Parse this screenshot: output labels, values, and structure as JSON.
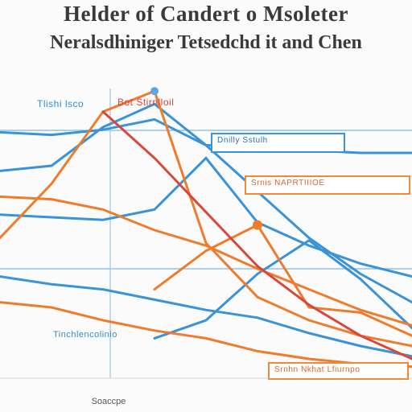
{
  "chart_data": {
    "type": "line",
    "title_line1": "Helder of Candert o Msoleter",
    "title_line2": "Neralsdhiniger Tetsedchd it and Chen",
    "xlabel": "Soaccpe",
    "x": [
      0,
      1,
      2,
      3,
      4,
      5,
      6,
      7,
      8
    ],
    "ylim": [
      0,
      10
    ],
    "grid": true,
    "series": [
      {
        "color": "#3a93d8",
        "values": [
          9.3,
          9.2,
          9.4,
          9.8,
          8.8,
          8.7,
          8.6,
          8.5,
          8.5
        ]
      },
      {
        "color": "#3a93d8",
        "values": [
          6.1,
          6.0,
          5.9,
          6.3,
          8.3,
          5.8,
          4.9,
          4.2,
          3.7
        ]
      },
      {
        "color": "#3a93d8",
        "values": [
          7.8,
          8.0,
          9.5,
          10.4,
          8.8,
          7.0,
          5.2,
          3.8,
          2.7
        ]
      },
      {
        "color": "#3a93d8",
        "values": [
          3.7,
          3.4,
          3.2,
          2.8,
          2.4,
          2.1,
          1.5,
          1.0,
          0.6
        ]
      },
      {
        "color": "#3a93d8",
        "values": [
          null,
          null,
          null,
          1.3,
          2.0,
          3.8,
          5.1,
          3.6,
          1.7
        ]
      },
      {
        "color": "#ef7b2c",
        "values": [
          6.8,
          6.7,
          6.3,
          5.5,
          4.9,
          4.0,
          3.2,
          2.4,
          1.8
        ]
      },
      {
        "color": "#ef7b2c",
        "values": [
          2.7,
          2.5,
          2.0,
          1.6,
          1.3,
          0.8,
          0.5,
          0.3,
          0.2
        ]
      },
      {
        "color": "#ef7b2c",
        "values": [
          5.2,
          7.3,
          10.1,
          10.9,
          5.0,
          2.9,
          2.0,
          1.4,
          1.0
        ]
      },
      {
        "color": "#ef7b2c",
        "values": [
          null,
          null,
          null,
          3.2,
          4.7,
          5.7,
          2.5,
          2.3,
          1.4
        ]
      },
      {
        "color": "#d9473a",
        "values": [
          null,
          null,
          10.1,
          8.3,
          6.2,
          4.1,
          2.6,
          1.4,
          0.5
        ]
      }
    ],
    "annotations": {
      "top_left": "Tlishi lsco",
      "top_red": "Bot Stirnlloil",
      "box_blue": "Dnilly Sstulh",
      "box_orange": "Srnis NAPRTIIIOE",
      "mid_left": "Tinchlencolinio",
      "box_bottom": "Srnhn Nkhat Lfiurnpo"
    }
  }
}
